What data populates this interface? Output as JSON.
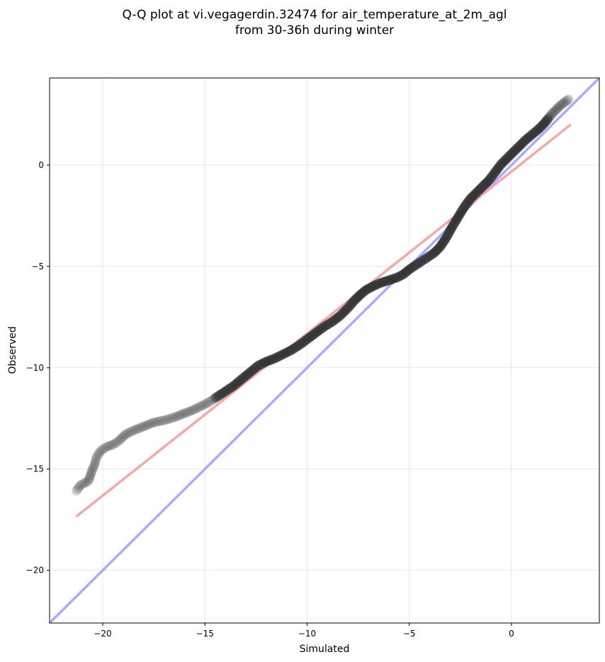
{
  "chart_data": {
    "type": "scatter",
    "title_lines": [
      "Q-Q plot at vi.vegagerdin.32474 for air_temperature_at_2m_agl",
      "from 30-36h during winter"
    ],
    "xlabel": "Simulated",
    "ylabel": "Observed",
    "xlim": [
      -22.6,
      4.3
    ],
    "ylim": [
      -22.6,
      4.3
    ],
    "x_ticks": [
      -20,
      -15,
      -10,
      -5,
      0
    ],
    "y_ticks": [
      -20,
      -15,
      -10,
      -5,
      0
    ],
    "x_tick_labels": [
      "−20",
      "−15",
      "−10",
      "−5",
      "0"
    ],
    "y_tick_labels": [
      "−20",
      "−15",
      "−10",
      "−5",
      "0"
    ],
    "grid": true,
    "lines": [
      {
        "kind": "identity",
        "color": "#aaaaff",
        "x": [
          -22.6,
          4.3
        ],
        "y": [
          -22.6,
          4.3
        ]
      },
      {
        "kind": "fit",
        "color": "#f6a8a8",
        "x": [
          -21.3,
          2.9
        ],
        "y": [
          -17.35,
          2.0
        ]
      }
    ],
    "quantile_curve": {
      "x": [
        -21.3,
        -21.1,
        -20.7,
        -20.6,
        -20.5,
        -20.4,
        -20.3,
        -20.1,
        -19.8,
        -19.5,
        -19.2,
        -18.9,
        -18.5,
        -18.0,
        -17.5,
        -17.0,
        -16.5,
        -16.0,
        -15.6,
        -15.2,
        -14.8,
        -14.5,
        -14.2,
        -13.9,
        -13.6,
        -13.3,
        -13.0,
        -12.7,
        -12.4,
        -12.0,
        -11.6,
        -11.2,
        -10.8,
        -10.4,
        -10.0,
        -9.6,
        -9.2,
        -8.8,
        -8.4,
        -8.0,
        -7.7,
        -7.4,
        -7.1,
        -6.8,
        -6.5,
        -6.2,
        -5.9,
        -5.6,
        -5.3,
        -5.0,
        -4.7,
        -4.4,
        -4.1,
        -3.8,
        -3.5,
        -3.2,
        -2.9,
        -2.6,
        -2.3,
        -2.0,
        -1.7,
        -1.4,
        -1.1,
        -0.8,
        -0.5,
        -0.2,
        0.1,
        0.4,
        0.7,
        1.0,
        1.3,
        1.6,
        1.8,
        2.0,
        2.2,
        2.4,
        2.6,
        2.8
      ],
      "y": [
        -16.1,
        -15.8,
        -15.6,
        -15.3,
        -15.0,
        -14.8,
        -14.4,
        -14.1,
        -13.9,
        -13.8,
        -13.6,
        -13.3,
        -13.1,
        -12.9,
        -12.7,
        -12.6,
        -12.45,
        -12.25,
        -12.1,
        -11.9,
        -11.7,
        -11.5,
        -11.3,
        -11.1,
        -10.9,
        -10.65,
        -10.4,
        -10.15,
        -9.9,
        -9.7,
        -9.55,
        -9.35,
        -9.15,
        -8.9,
        -8.6,
        -8.3,
        -8.0,
        -7.75,
        -7.45,
        -7.05,
        -6.7,
        -6.4,
        -6.15,
        -6.0,
        -5.85,
        -5.75,
        -5.65,
        -5.55,
        -5.4,
        -5.15,
        -4.95,
        -4.75,
        -4.55,
        -4.35,
        -4.05,
        -3.6,
        -3.05,
        -2.55,
        -2.05,
        -1.65,
        -1.35,
        -1.05,
        -0.75,
        -0.35,
        0.05,
        0.35,
        0.65,
        0.95,
        1.25,
        1.5,
        1.75,
        2.05,
        2.3,
        2.55,
        2.75,
        2.95,
        3.1,
        3.25
      ]
    }
  }
}
